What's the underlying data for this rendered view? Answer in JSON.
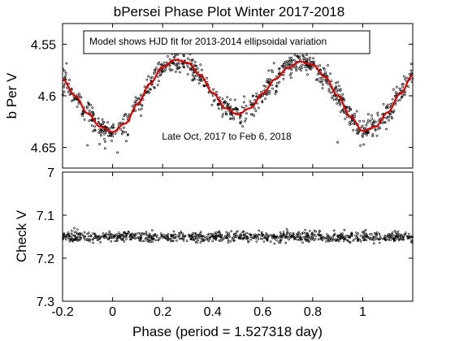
{
  "chart_data": [
    {
      "type": "scatter",
      "title": "bPersei Phase Plot Winter 2017-2018",
      "ylabel": "b Per V",
      "xlabel": "",
      "xlim": [
        -0.2,
        1.2
      ],
      "ylim": [
        4.67,
        4.53
      ],
      "y_inverted": true,
      "xticks": [
        -0.2,
        0,
        0.2,
        0.4,
        0.6,
        0.8,
        1
      ],
      "yticks": [
        "4.55",
        "4.6",
        "4.65"
      ],
      "legend_box_text": "Model shows HJD fit for 2013-2014 ellipsoidal variation",
      "annotation": "Late Oct, 2017 to Feb 6, 2018",
      "grid": false,
      "model_color": "#e00000",
      "points_color": "#000000",
      "model_curve": {
        "mean": 4.5985,
        "x": [
          -0.2,
          -0.15,
          -0.1,
          -0.05,
          0.0,
          0.05,
          0.1,
          0.15,
          0.2,
          0.25,
          0.3,
          0.35,
          0.4,
          0.45,
          0.5,
          0.55,
          0.6,
          0.65,
          0.7,
          0.75,
          0.8,
          0.85,
          0.9,
          0.95,
          1.0,
          1.05,
          1.1,
          1.15,
          1.2
        ],
        "y": [
          4.584,
          4.6,
          4.617,
          4.63,
          4.635,
          4.627,
          4.608,
          4.588,
          4.572,
          4.565,
          4.568,
          4.58,
          4.597,
          4.612,
          4.618,
          4.612,
          4.598,
          4.584,
          4.573,
          4.567,
          4.57,
          4.582,
          4.6,
          4.62,
          4.634,
          4.63,
          4.616,
          4.598,
          4.58
        ]
      }
    },
    {
      "type": "scatter",
      "title": "",
      "ylabel": "Check V",
      "xlabel": "Phase (period = 1.527318 day)",
      "xlim": [
        -0.2,
        1.2
      ],
      "ylim": [
        7.0,
        7.3
      ],
      "xticks": [
        "-0.2",
        "0",
        "0.2",
        "0.4",
        "0.6",
        "0.8",
        "1"
      ],
      "yticks": [
        "7",
        "7.1",
        "7.2",
        "7.3"
      ],
      "grid": false,
      "points_color": "#000000",
      "mean_level": 7.15,
      "scatter": 0.006
    }
  ]
}
